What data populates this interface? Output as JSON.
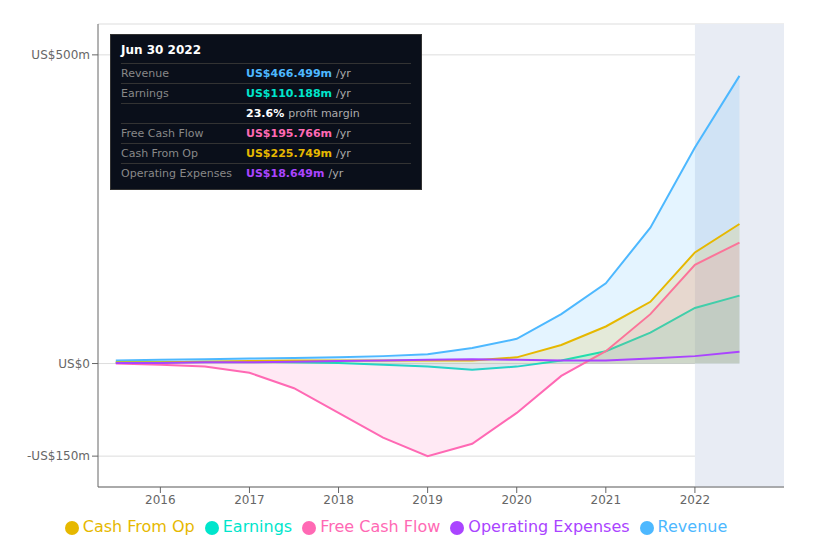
{
  "chart_data": {
    "type": "area",
    "x": [
      2015.5,
      2016,
      2016.5,
      2017,
      2017.5,
      2018,
      2018.5,
      2019,
      2019.5,
      2020,
      2020.5,
      2021,
      2021.5,
      2022,
      2022.5
    ],
    "xlim": [
      2015.3,
      2023.0
    ],
    "xticks": [
      2016,
      2017,
      2018,
      2019,
      2020,
      2021,
      2022
    ],
    "ylim": [
      -200,
      550
    ],
    "yticks": [
      {
        "value": 500,
        "label": "US$500m"
      },
      {
        "value": 0,
        "label": "US$0"
      },
      {
        "value": -150,
        "label": "-US$150m"
      }
    ],
    "grid": true,
    "legend": "bottom",
    "highlight_from": 2022,
    "series": [
      {
        "name": "Revenue",
        "color": "#4db8ff",
        "type": "area",
        "values": [
          5,
          6,
          7,
          8,
          9,
          10,
          12,
          15,
          25,
          40,
          80,
          130,
          220,
          350,
          466
        ]
      },
      {
        "name": "Earnings",
        "color": "#00e5cc",
        "type": "area",
        "values": [
          2,
          2,
          3,
          3,
          2,
          1,
          -2,
          -5,
          -10,
          -5,
          5,
          20,
          50,
          90,
          110
        ]
      },
      {
        "name": "Free Cash Flow",
        "color": "#ff69b4",
        "type": "area",
        "values": [
          0,
          -2,
          -5,
          -15,
          -40,
          -80,
          -120,
          -150,
          -130,
          -80,
          -20,
          20,
          80,
          160,
          196
        ]
      },
      {
        "name": "Cash From Op",
        "color": "#e6b800",
        "type": "area",
        "values": [
          2,
          2,
          3,
          4,
          5,
          5,
          5,
          5,
          5,
          10,
          30,
          60,
          100,
          180,
          226
        ]
      },
      {
        "name": "Operating Expenses",
        "color": "#aa44ff",
        "type": "line",
        "values": [
          1,
          1,
          2,
          2,
          3,
          4,
          5,
          6,
          7,
          6,
          5,
          5,
          8,
          12,
          19
        ]
      }
    ],
    "annotations": [
      {
        "text": "Jun 30 2022"
      },
      {
        "label": "Revenue",
        "value": "US$466.499m",
        "unit": "/yr",
        "color": "#4db8ff"
      },
      {
        "label": "Earnings",
        "value": "US$110.188m",
        "unit": "/yr",
        "color": "#00e5cc"
      },
      {
        "value": "23.6%",
        "unit": "profit margin",
        "color": "#ffffff"
      },
      {
        "label": "Free Cash Flow",
        "value": "US$195.766m",
        "unit": "/yr",
        "color": "#ff69b4"
      },
      {
        "label": "Cash From Op",
        "value": "US$225.749m",
        "unit": "/yr",
        "color": "#e6b800"
      },
      {
        "label": "Operating Expenses",
        "value": "US$18.649m",
        "unit": "/yr",
        "color": "#aa44ff"
      }
    ]
  }
}
